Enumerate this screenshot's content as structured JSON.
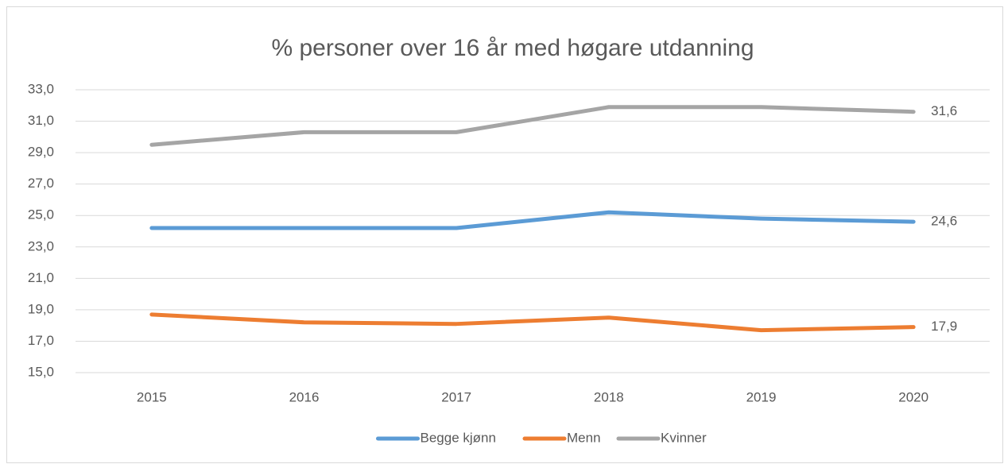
{
  "chart_data": {
    "type": "line",
    "title": "% personer over 16 år med høgare utdanning",
    "categories": [
      "2015",
      "2016",
      "2017",
      "2018",
      "2019",
      "2020"
    ],
    "series": [
      {
        "name": "Begge kjønn",
        "color": "#5b9bd5",
        "values": [
          24.2,
          24.2,
          24.2,
          25.2,
          24.8,
          24.6
        ],
        "value_labels": [
          null,
          null,
          null,
          null,
          null,
          "24,6"
        ]
      },
      {
        "name": "Menn",
        "color": "#ed7d31",
        "values": [
          18.7,
          18.2,
          18.1,
          18.5,
          17.7,
          17.9
        ],
        "value_labels": [
          null,
          null,
          null,
          null,
          null,
          "17,9"
        ]
      },
      {
        "name": "Kvinner",
        "color": "#a5a5a5",
        "values": [
          29.5,
          30.3,
          30.3,
          31.9,
          31.9,
          31.6
        ],
        "value_labels": [
          null,
          null,
          null,
          null,
          null,
          "31,6"
        ]
      }
    ],
    "ylim": [
      15,
      33
    ],
    "yticks": [
      {
        "value": 15,
        "label": "15,0"
      },
      {
        "value": 17,
        "label": "17,0"
      },
      {
        "value": 19,
        "label": "19,0"
      },
      {
        "value": 21,
        "label": "21,0"
      },
      {
        "value": 23,
        "label": "23,0"
      },
      {
        "value": 25,
        "label": "25,0"
      },
      {
        "value": 27,
        "label": "27,0"
      },
      {
        "value": 29,
        "label": "29,0"
      },
      {
        "value": 31,
        "label": "31,0"
      },
      {
        "value": 33,
        "label": "33,0"
      }
    ],
    "grid": true,
    "legend": "bottom"
  }
}
